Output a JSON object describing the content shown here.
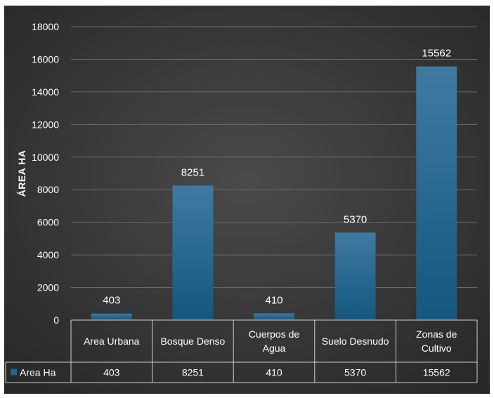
{
  "chart_data": {
    "type": "bar",
    "ylabel": "ÁREA HA",
    "xlabel": "",
    "ylim": [
      0,
      18000
    ],
    "yticks": [
      "0",
      "2000",
      "4000",
      "6000",
      "8000",
      "10000",
      "12000",
      "14000",
      "16000",
      "18000"
    ],
    "categories": [
      [
        "Area Urbana"
      ],
      [
        "Bosque Denso"
      ],
      [
        "Cuerpos de",
        "Agua"
      ],
      [
        "Suelo Desnudo"
      ],
      [
        "Zonas de",
        "Cultivo"
      ]
    ],
    "series": [
      {
        "name": "Area Ha",
        "values": [
          403,
          8251,
          410,
          5370,
          15562
        ],
        "color": "#1f6690"
      }
    ],
    "data_labels": [
      "403",
      "8251",
      "410",
      "5370",
      "15562"
    ],
    "data_table": true,
    "grid": true,
    "background": "#3a3a3a"
  }
}
